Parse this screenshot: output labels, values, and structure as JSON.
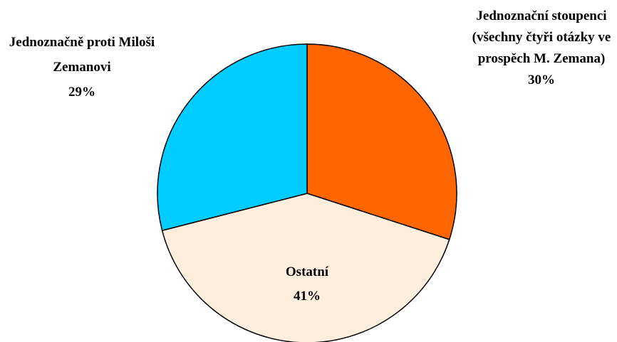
{
  "chart_data": {
    "type": "pie",
    "categories": [
      "Jednoznační stoupenci (všechny čtyři otázky ve prospěch M. Zemana)",
      "Ostatní",
      "Jednoznačně proti Miloši Zemanovi"
    ],
    "values": [
      30,
      41,
      29
    ],
    "value_labels": [
      "30%",
      "41%",
      "29%"
    ],
    "colors": [
      "#ff6600",
      "#fdeedd",
      "#00ccff"
    ]
  }
}
